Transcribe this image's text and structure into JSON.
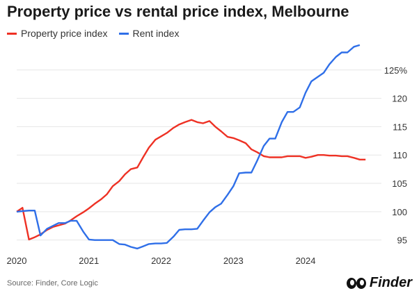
{
  "title": "Property price vs rental price index, Melbourne",
  "source": "Source: Finder, Core Logic",
  "brand": "Finder",
  "chart_data": {
    "type": "line",
    "title": "Property price vs rental price index, Melbourne",
    "xlabel": "",
    "ylabel": "",
    "xlim": [
      2020,
      2025.05
    ],
    "ylim": [
      93,
      130
    ],
    "x_ticks": [
      2020,
      2021,
      2022,
      2023,
      2024
    ],
    "x_tick_labels": [
      "2020",
      "2021",
      "2022",
      "2023",
      "2024"
    ],
    "y_ticks": [
      95,
      100,
      105,
      110,
      115,
      120,
      125
    ],
    "y_tick_labels": [
      "95",
      "100",
      "105",
      "110",
      "115",
      "120",
      "125%"
    ],
    "grid": "horizontal",
    "legend": "top-left",
    "series": [
      {
        "name": "Property price index",
        "color": "#ee3124",
        "points": [
          [
            2020.0,
            100.0
          ],
          [
            2020.08,
            100.7
          ],
          [
            2020.17,
            95.1
          ],
          [
            2020.25,
            95.5
          ],
          [
            2020.33,
            96.0
          ],
          [
            2020.42,
            96.8
          ],
          [
            2020.5,
            97.3
          ],
          [
            2020.58,
            97.6
          ],
          [
            2020.67,
            97.9
          ],
          [
            2020.75,
            98.5
          ],
          [
            2020.83,
            99.2
          ],
          [
            2020.92,
            99.9
          ],
          [
            2021.0,
            100.6
          ],
          [
            2021.08,
            101.4
          ],
          [
            2021.17,
            102.2
          ],
          [
            2021.25,
            103.1
          ],
          [
            2021.33,
            104.5
          ],
          [
            2021.42,
            105.4
          ],
          [
            2021.5,
            106.6
          ],
          [
            2021.58,
            107.5
          ],
          [
            2021.67,
            107.8
          ],
          [
            2021.75,
            109.6
          ],
          [
            2021.83,
            111.3
          ],
          [
            2021.92,
            112.7
          ],
          [
            2022.0,
            113.3
          ],
          [
            2022.08,
            113.9
          ],
          [
            2022.17,
            114.8
          ],
          [
            2022.25,
            115.4
          ],
          [
            2022.33,
            115.8
          ],
          [
            2022.42,
            116.2
          ],
          [
            2022.5,
            115.8
          ],
          [
            2022.58,
            115.6
          ],
          [
            2022.67,
            116.0
          ],
          [
            2022.75,
            115.0
          ],
          [
            2022.83,
            114.2
          ],
          [
            2022.92,
            113.2
          ],
          [
            2023.0,
            113.0
          ],
          [
            2023.08,
            112.6
          ],
          [
            2023.17,
            112.1
          ],
          [
            2023.25,
            111.0
          ],
          [
            2023.33,
            110.5
          ],
          [
            2023.42,
            109.8
          ],
          [
            2023.5,
            109.6
          ],
          [
            2023.58,
            109.6
          ],
          [
            2023.67,
            109.6
          ],
          [
            2023.75,
            109.8
          ],
          [
            2023.83,
            109.8
          ],
          [
            2023.92,
            109.8
          ],
          [
            2024.0,
            109.5
          ],
          [
            2024.08,
            109.7
          ],
          [
            2024.17,
            110.0
          ],
          [
            2024.25,
            110.0
          ],
          [
            2024.33,
            109.9
          ],
          [
            2024.42,
            109.9
          ],
          [
            2024.5,
            109.8
          ],
          [
            2024.58,
            109.8
          ],
          [
            2024.67,
            109.5
          ],
          [
            2024.75,
            109.2
          ],
          [
            2024.83,
            109.2
          ]
        ]
      },
      {
        "name": "Rent index",
        "color": "#2f6fe8",
        "points": [
          [
            2020.0,
            100.0
          ],
          [
            2020.08,
            100.1
          ],
          [
            2020.17,
            100.2
          ],
          [
            2020.25,
            100.2
          ],
          [
            2020.33,
            95.8
          ],
          [
            2020.42,
            97.0
          ],
          [
            2020.5,
            97.5
          ],
          [
            2020.58,
            98.0
          ],
          [
            2020.67,
            98.0
          ],
          [
            2020.75,
            98.4
          ],
          [
            2020.83,
            98.4
          ],
          [
            2020.92,
            96.5
          ],
          [
            2021.0,
            95.1
          ],
          [
            2021.08,
            95.0
          ],
          [
            2021.17,
            95.0
          ],
          [
            2021.25,
            95.0
          ],
          [
            2021.33,
            95.0
          ],
          [
            2021.42,
            94.3
          ],
          [
            2021.5,
            94.2
          ],
          [
            2021.58,
            93.8
          ],
          [
            2021.67,
            93.5
          ],
          [
            2021.75,
            93.9
          ],
          [
            2021.83,
            94.3
          ],
          [
            2021.92,
            94.4
          ],
          [
            2022.0,
            94.4
          ],
          [
            2022.08,
            94.5
          ],
          [
            2022.17,
            95.6
          ],
          [
            2022.25,
            96.8
          ],
          [
            2022.33,
            96.9
          ],
          [
            2022.42,
            96.9
          ],
          [
            2022.5,
            97.0
          ],
          [
            2022.58,
            98.4
          ],
          [
            2022.67,
            99.9
          ],
          [
            2022.75,
            100.8
          ],
          [
            2022.83,
            101.4
          ],
          [
            2022.92,
            103.0
          ],
          [
            2023.0,
            104.5
          ],
          [
            2023.08,
            106.8
          ],
          [
            2023.17,
            106.9
          ],
          [
            2023.25,
            106.9
          ],
          [
            2023.33,
            109.0
          ],
          [
            2023.42,
            111.6
          ],
          [
            2023.5,
            112.9
          ],
          [
            2023.58,
            112.9
          ],
          [
            2023.67,
            115.8
          ],
          [
            2023.75,
            117.6
          ],
          [
            2023.83,
            117.6
          ],
          [
            2023.92,
            118.4
          ],
          [
            2024.0,
            121.0
          ],
          [
            2024.08,
            123.0
          ],
          [
            2024.17,
            123.8
          ],
          [
            2024.25,
            124.5
          ],
          [
            2024.33,
            126.0
          ],
          [
            2024.42,
            127.3
          ],
          [
            2024.5,
            128.1
          ],
          [
            2024.58,
            128.1
          ],
          [
            2024.67,
            129.1
          ],
          [
            2024.75,
            129.4
          ]
        ]
      }
    ]
  }
}
